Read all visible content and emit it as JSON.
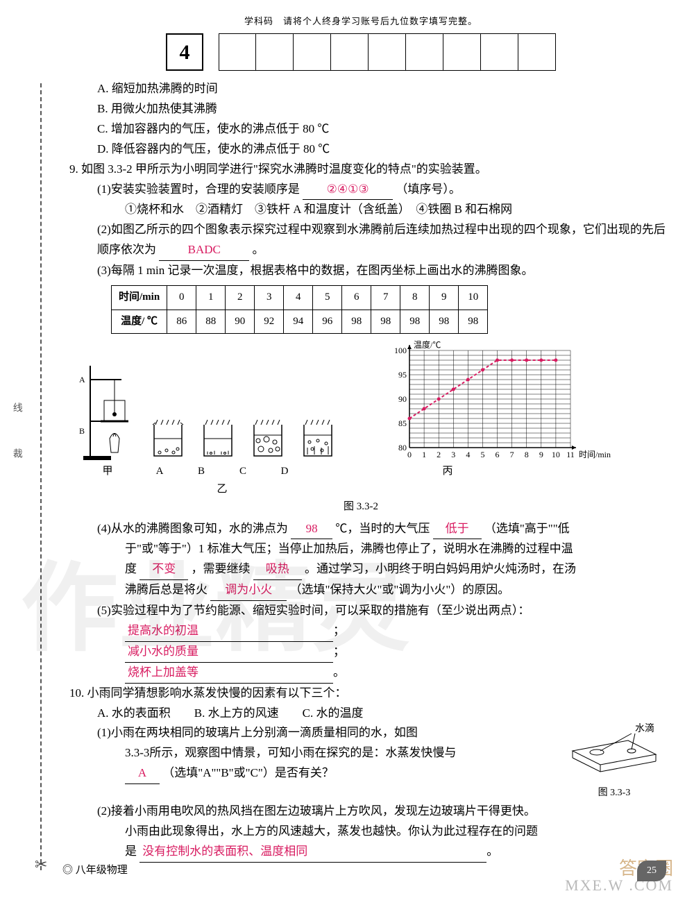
{
  "header": {
    "note": "学科码　请将个人终身学习账号后九位数字填写完整。",
    "subject_code": "4"
  },
  "q8_options": {
    "a": "A. 缩短加热沸腾的时间",
    "b": "B. 用微火加热使其沸腾",
    "c": "C. 增加容器内的气压，使水的沸点低于 80 ℃",
    "d": "D. 降低容器内的气压，使水的沸点低于 80 ℃"
  },
  "q9": {
    "stem": "9. 如图 3.3-2 甲所示为小明同学进行\"探究水沸腾时温度变化的特点\"的实验装置。",
    "p1_pre": "(1)安装实验装置时，合理的安装顺序是",
    "p1_ans": "②④①③",
    "p1_post": "（填序号）。",
    "p1_items": "①烧杯和水　②酒精灯　③铁杆 A 和温度计（含纸盖）　④铁圈 B 和石棉网",
    "p2_pre": "(2)如图乙所示的四个图象表示探究过程中观察到水沸腾前后连续加热过程中出现的四个现象，它们出现的先后顺序依次为",
    "p2_ans": "BADC",
    "p2_post": "。",
    "p3": "(3)每隔 1 min 记录一次温度，根据表格中的数据，在图丙坐标上画出水的沸腾图象。",
    "table": {
      "row1_label": "时间/min",
      "row1": [
        "0",
        "1",
        "2",
        "3",
        "4",
        "5",
        "6",
        "7",
        "8",
        "9",
        "10"
      ],
      "row2_label": "温度/ ℃",
      "row2": [
        "86",
        "88",
        "90",
        "92",
        "94",
        "96",
        "98",
        "98",
        "98",
        "98",
        "98"
      ]
    },
    "fig_labels": {
      "jia": "甲",
      "a": "A",
      "b": "B",
      "c": "C",
      "d": "D",
      "yi": "乙",
      "bing": "丙",
      "fig_no": "图 3.3-2"
    },
    "chart": {
      "type": "line",
      "x_label": "时间/min",
      "y_label": "温度/℃",
      "xlim": [
        0,
        11
      ],
      "ylim": [
        80,
        100
      ],
      "xticks": [
        0,
        1,
        2,
        3,
        4,
        5,
        6,
        7,
        8,
        9,
        10,
        11
      ],
      "yticks": [
        80,
        85,
        90,
        95,
        100
      ],
      "grid_color": "#000000",
      "background_color": "#ffffff",
      "line_color": "#d81b60",
      "line_width": 2,
      "x": [
        0,
        1,
        2,
        3,
        4,
        5,
        6,
        7,
        8,
        9,
        10
      ],
      "y": [
        86,
        88,
        90,
        92,
        94,
        96,
        98,
        98,
        98,
        98,
        98
      ],
      "label_fontsize": 12
    },
    "p4_a": "(4)从水的沸腾图象可知，水的沸点为",
    "p4_ans1": "98",
    "p4_b": "℃，当时的大气压",
    "p4_ans2": "低于",
    "p4_c": "（选填\"高于\"\"低",
    "p4_d": "于\"或\"等于\"）1 标准大气压；当停止加热后，沸腾也停止了，说明水在沸腾的过程中温",
    "p4_e": "度",
    "p4_ans3": "不变",
    "p4_f": "，需要继续",
    "p4_ans4": "吸热",
    "p4_g": "。通过学习，小明终于明白妈妈用炉火炖汤时，在汤",
    "p4_h": "沸腾后总是将火",
    "p4_ans5": "调为小火",
    "p4_i": "（选填\"保持大火\"或\"调为小火\"）的原因。",
    "p5_a": "(5)实验过程中为了节约能源、缩短实验时间，可以采取的措施有（至少说出两点）：",
    "p5_ans1": "提高水的初温",
    "p5_ans2": "减小水的质量",
    "p5_ans3": "烧杯上加盖等"
  },
  "q10": {
    "stem": "10. 小雨同学猜想影响水蒸发快慢的因素有以下三个：",
    "opts": "A. 水的表面积　　B. 水上方的风速　　C. 水的温度",
    "p1_a": "(1)小雨在两块相同的玻璃片上分别滴一滴质量相同的水，如图",
    "p1_b": "3.3-3所示，观察图中情景，可知小雨在探究的是：水蒸发快慢与",
    "p1_ans": "A",
    "p1_c": "（选填\"A\"\"B\"或\"C\"）是否有关？",
    "fig_label_drop": "水滴",
    "fig_no": "图 3.3-3",
    "p2_a": "(2)接着小雨用电吹风的热风挡在图左边玻璃片上方吹风，发现左边玻璃片干得更快。",
    "p2_b": "小雨由此现象得出，水上方的风速越大，蒸发也越快。你认为此过程存在的问题",
    "p2_c": "是",
    "p2_ans": "没有控制水的表面积、温度相同"
  },
  "footer": {
    "left": "八年级物理",
    "page": "25"
  },
  "side": "线　　裁",
  "watermarks": {
    "big": "作业精灵",
    "brand": "答案圈",
    "url": "MXE.W .COM"
  }
}
